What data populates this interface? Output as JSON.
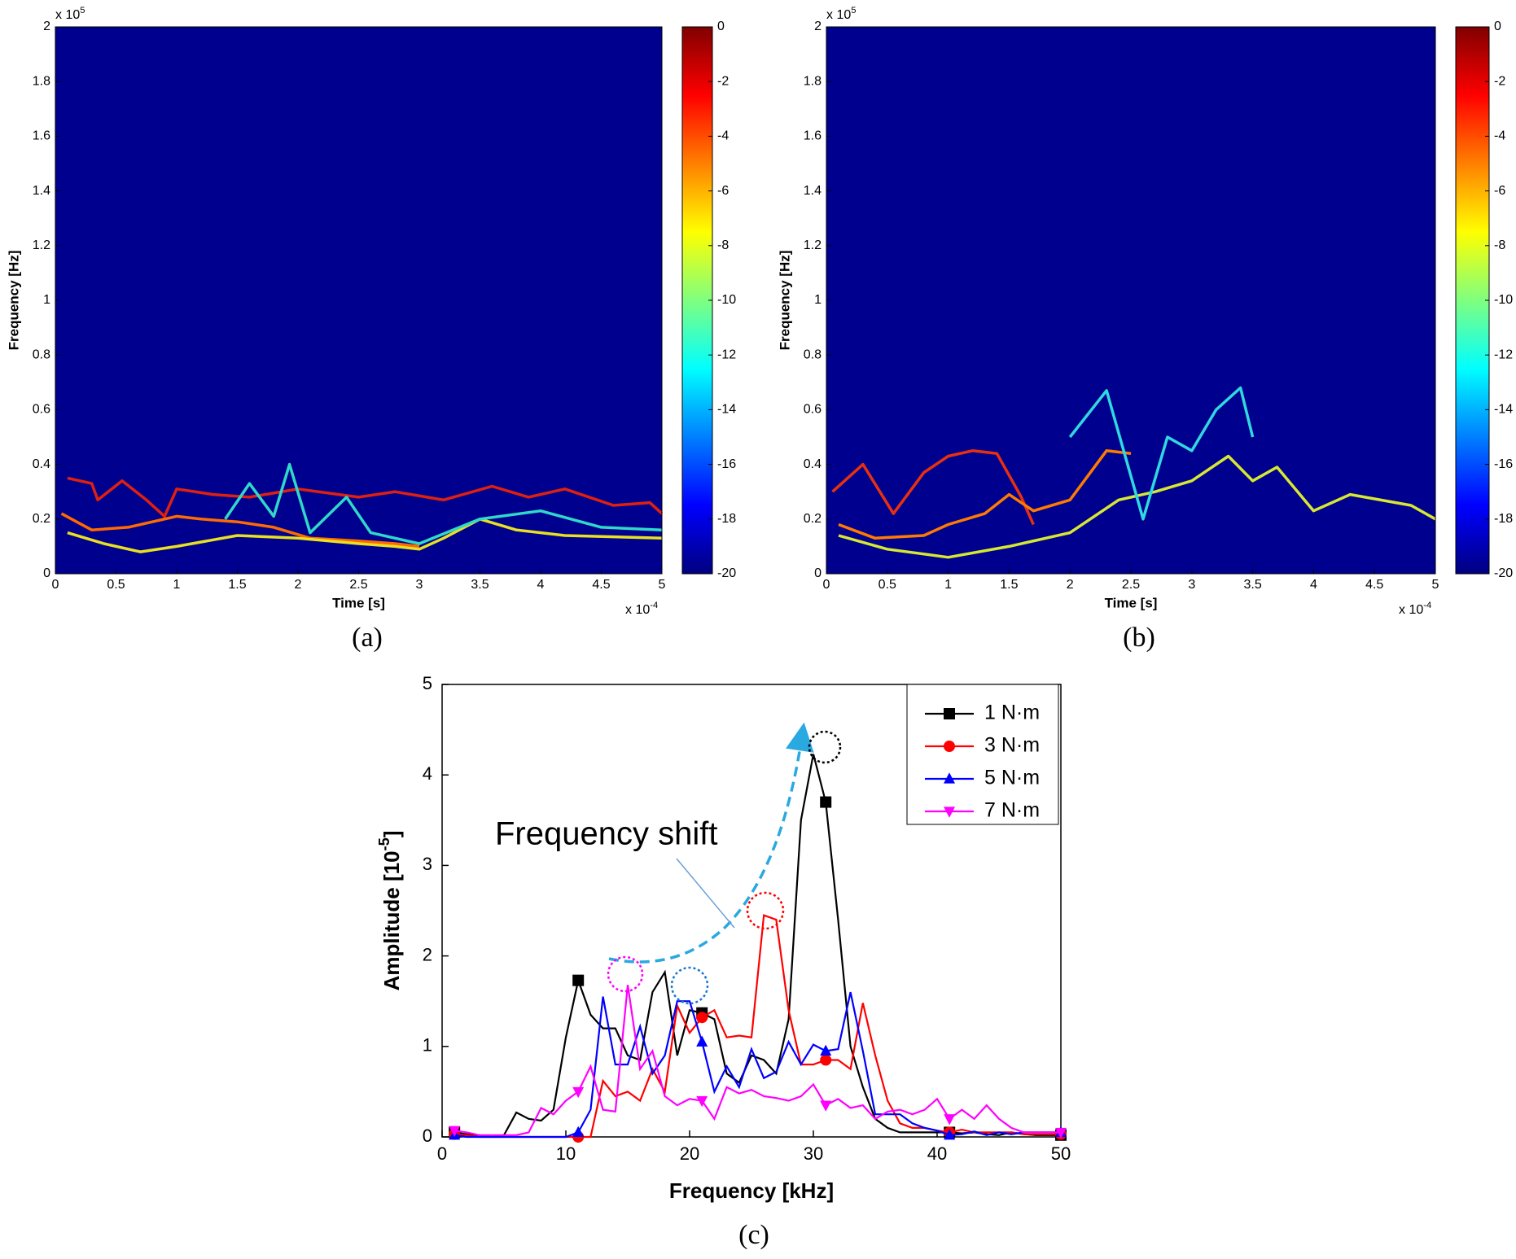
{
  "chart_data": [
    {
      "type": "spectrogram",
      "caption": "(a)",
      "xlabel": "Time [s]",
      "ylabel": "Frequency [Hz]",
      "x_multiplier": {
        "base": "x 10",
        "exponent": "-4"
      },
      "y_multiplier": {
        "base": "x 10",
        "exponent": "5"
      },
      "xlim": [
        0,
        5
      ],
      "xticks": [
        0,
        0.5,
        1,
        1.5,
        2,
        2.5,
        3,
        3.5,
        4,
        4.5,
        5
      ],
      "ylim": [
        0,
        2
      ],
      "yticks": [
        0,
        0.2,
        0.4,
        0.6,
        0.8,
        1,
        1.2,
        1.4,
        1.6,
        1.8,
        2
      ],
      "background": "#00008f",
      "colorbar": {
        "lim": [
          -20,
          0
        ],
        "ticks": [
          0,
          -2,
          -4,
          -6,
          -8,
          -10,
          -12,
          -14,
          -16,
          -18,
          -20
        ]
      },
      "series": [
        {
          "color": "#e0200f",
          "x": [
            0.1,
            0.3,
            0.35,
            0.55,
            0.75,
            0.9,
            1.0,
            1.3,
            1.6,
            2.0,
            2.5,
            2.8,
            3.2,
            3.6,
            3.9,
            4.2,
            4.6,
            4.9,
            5.0
          ],
          "values": [
            0.35,
            0.33,
            0.27,
            0.34,
            0.27,
            0.21,
            0.31,
            0.29,
            0.28,
            0.31,
            0.28,
            0.3,
            0.27,
            0.32,
            0.28,
            0.31,
            0.25,
            0.26,
            0.22
          ]
        },
        {
          "color": "#ff6a00",
          "x": [
            0.05,
            0.3,
            0.6,
            1.0,
            1.2,
            1.5,
            1.8,
            2.1,
            2.5,
            2.8,
            3.0
          ],
          "values": [
            0.22,
            0.16,
            0.17,
            0.21,
            0.2,
            0.19,
            0.17,
            0.13,
            0.12,
            0.11,
            0.1
          ]
        },
        {
          "color": "#e8e020",
          "x": [
            0.1,
            0.4,
            0.7,
            1.0,
            1.5,
            2.0,
            2.5,
            2.8,
            3.0,
            3.2,
            3.5,
            3.8,
            4.2,
            5.0
          ],
          "values": [
            0.15,
            0.11,
            0.08,
            0.1,
            0.14,
            0.13,
            0.11,
            0.1,
            0.09,
            0.13,
            0.2,
            0.16,
            0.14,
            0.13
          ]
        },
        {
          "color": "#30d8c8",
          "x": [
            1.4,
            1.6,
            1.8,
            1.93,
            2.1,
            2.4,
            2.6,
            3.0,
            3.5,
            4.0,
            4.5,
            5.0
          ],
          "values": [
            0.2,
            0.33,
            0.21,
            0.4,
            0.15,
            0.28,
            0.15,
            0.11,
            0.2,
            0.23,
            0.17,
            0.16
          ]
        }
      ]
    },
    {
      "type": "spectrogram",
      "caption": "(b)",
      "xlabel": "Time [s]",
      "ylabel": "Frequency [Hz]",
      "x_multiplier": {
        "base": "x 10",
        "exponent": "-4"
      },
      "y_multiplier": {
        "base": "x 10",
        "exponent": "5"
      },
      "xlim": [
        0,
        5
      ],
      "xticks": [
        0,
        0.5,
        1,
        1.5,
        2,
        2.5,
        3,
        3.5,
        4,
        4.5,
        5
      ],
      "ylim": [
        0,
        2
      ],
      "yticks": [
        0,
        0.2,
        0.4,
        0.6,
        0.8,
        1,
        1.2,
        1.4,
        1.6,
        1.8,
        2
      ],
      "background": "#00008f",
      "colorbar": {
        "lim": [
          -20,
          0
        ],
        "ticks": [
          0,
          -2,
          -4,
          -6,
          -8,
          -10,
          -12,
          -14,
          -16,
          -18,
          -20
        ]
      },
      "series": [
        {
          "color": "#e8300f",
          "x": [
            0.05,
            0.3,
            0.55,
            0.8,
            1.0,
            1.2,
            1.4,
            1.6,
            1.7
          ],
          "values": [
            0.3,
            0.4,
            0.22,
            0.37,
            0.43,
            0.45,
            0.44,
            0.28,
            0.18
          ]
        },
        {
          "color": "#ff7a00",
          "x": [
            0.1,
            0.4,
            0.8,
            1.0,
            1.3,
            1.5,
            1.7,
            2.0,
            2.3,
            2.5
          ],
          "values": [
            0.18,
            0.13,
            0.14,
            0.18,
            0.22,
            0.29,
            0.23,
            0.27,
            0.45,
            0.44
          ]
        },
        {
          "color": "#d8e830",
          "x": [
            0.1,
            0.5,
            1.0,
            1.5,
            2.0,
            2.4,
            2.7,
            3.0,
            3.3,
            3.5,
            3.7,
            4.0,
            4.3,
            4.8,
            5.0
          ],
          "values": [
            0.14,
            0.09,
            0.06,
            0.1,
            0.15,
            0.27,
            0.3,
            0.34,
            0.43,
            0.34,
            0.39,
            0.23,
            0.29,
            0.25,
            0.2
          ]
        },
        {
          "color": "#30d8e0",
          "x": [
            2.0,
            2.3,
            2.6,
            2.8,
            3.0,
            3.2,
            3.4,
            3.5
          ],
          "values": [
            0.5,
            0.67,
            0.2,
            0.5,
            0.45,
            0.6,
            0.68,
            0.5
          ]
        }
      ]
    },
    {
      "type": "line",
      "caption": "(c)",
      "xlabel": "Frequency [kHz]",
      "ylabel": {
        "text": "Amplitude [10",
        "sup": "-5",
        "after": "]"
      },
      "annotation": "Frequency shift",
      "legend": "upper right",
      "marker_every": 10,
      "xlim": [
        0,
        50
      ],
      "xticks": [
        0,
        10,
        20,
        30,
        40,
        50
      ],
      "ylim": [
        0,
        5
      ],
      "yticks": [
        0,
        1,
        2,
        3,
        4,
        5
      ],
      "x": [
        1,
        2,
        3,
        4,
        5,
        6,
        7,
        8,
        9,
        10,
        11,
        12,
        13,
        14,
        15,
        16,
        17,
        18,
        19,
        20,
        21,
        22,
        23,
        24,
        25,
        26,
        27,
        28,
        29,
        30,
        31,
        32,
        33,
        34,
        35,
        36,
        37,
        38,
        39,
        40,
        41,
        42,
        43,
        44,
        45,
        46,
        47,
        48,
        49,
        50
      ],
      "series": [
        {
          "name": "1 N·m",
          "color": "#000000",
          "marker": "square",
          "values": [
            0.05,
            0.03,
            0.02,
            0,
            0.02,
            0.27,
            0.2,
            0.18,
            0.3,
            1.1,
            1.73,
            1.35,
            1.2,
            1.2,
            0.9,
            0.85,
            1.6,
            1.82,
            0.9,
            1.4,
            1.37,
            1.3,
            0.7,
            0.6,
            0.9,
            0.85,
            0.7,
            1.3,
            3.5,
            4.23,
            3.7,
            2.4,
            1.0,
            0.55,
            0.2,
            0.1,
            0.05,
            0.05,
            0.05,
            0.05,
            0.05,
            0.04,
            0.05,
            0.03,
            0.02,
            0.05,
            0.03,
            0.02,
            0.02,
            0.02
          ]
        },
        {
          "name": "3 N·m",
          "color": "#ff0000",
          "marker": "circle",
          "values": [
            0.03,
            0.02,
            0,
            0,
            0,
            0,
            0,
            0,
            0,
            0,
            0,
            0,
            0.62,
            0.45,
            0.5,
            0.4,
            0.75,
            0.5,
            1.45,
            1.15,
            1.32,
            1.4,
            1.1,
            1.12,
            1.1,
            2.45,
            2.4,
            1.4,
            0.8,
            0.8,
            0.85,
            0.85,
            0.75,
            1.48,
            0.9,
            0.4,
            0.15,
            0.1,
            0.1,
            0.07,
            0.05,
            0.08,
            0.05,
            0.05,
            0.05,
            0.05,
            0.03,
            0.03,
            0.03,
            0.03
          ]
        },
        {
          "name": "5 N·m",
          "color": "#0000ff",
          "marker": "triangle-up",
          "values": [
            0.02,
            0,
            0,
            0,
            0,
            0,
            0,
            0,
            0,
            0,
            0.05,
            0.3,
            1.55,
            0.8,
            0.8,
            1.22,
            0.7,
            0.9,
            1.5,
            1.5,
            1.05,
            0.5,
            0.78,
            0.55,
            0.97,
            0.65,
            0.72,
            1.05,
            0.8,
            1.02,
            0.95,
            0.97,
            1.6,
            0.95,
            0.25,
            0.25,
            0.25,
            0.15,
            0.1,
            0.07,
            0.02,
            0.03,
            0.06,
            0.02,
            0.05,
            0.03,
            0.05,
            0.05,
            0.05,
            0.05
          ]
        },
        {
          "name": "7 N·m",
          "color": "#ff00ff",
          "marker": "triangle-down",
          "values": [
            0.07,
            0.05,
            0.02,
            0.02,
            0.02,
            0.02,
            0.05,
            0.32,
            0.25,
            0.4,
            0.5,
            0.78,
            0.3,
            0.28,
            1.68,
            0.75,
            0.95,
            0.45,
            0.35,
            0.42,
            0.4,
            0.2,
            0.55,
            0.48,
            0.52,
            0.45,
            0.43,
            0.4,
            0.45,
            0.58,
            0.35,
            0.42,
            0.32,
            0.35,
            0.2,
            0.28,
            0.3,
            0.25,
            0.3,
            0.42,
            0.2,
            0.3,
            0.2,
            0.35,
            0.2,
            0.1,
            0.05,
            0.05,
            0.05,
            0.05
          ]
        }
      ]
    }
  ]
}
